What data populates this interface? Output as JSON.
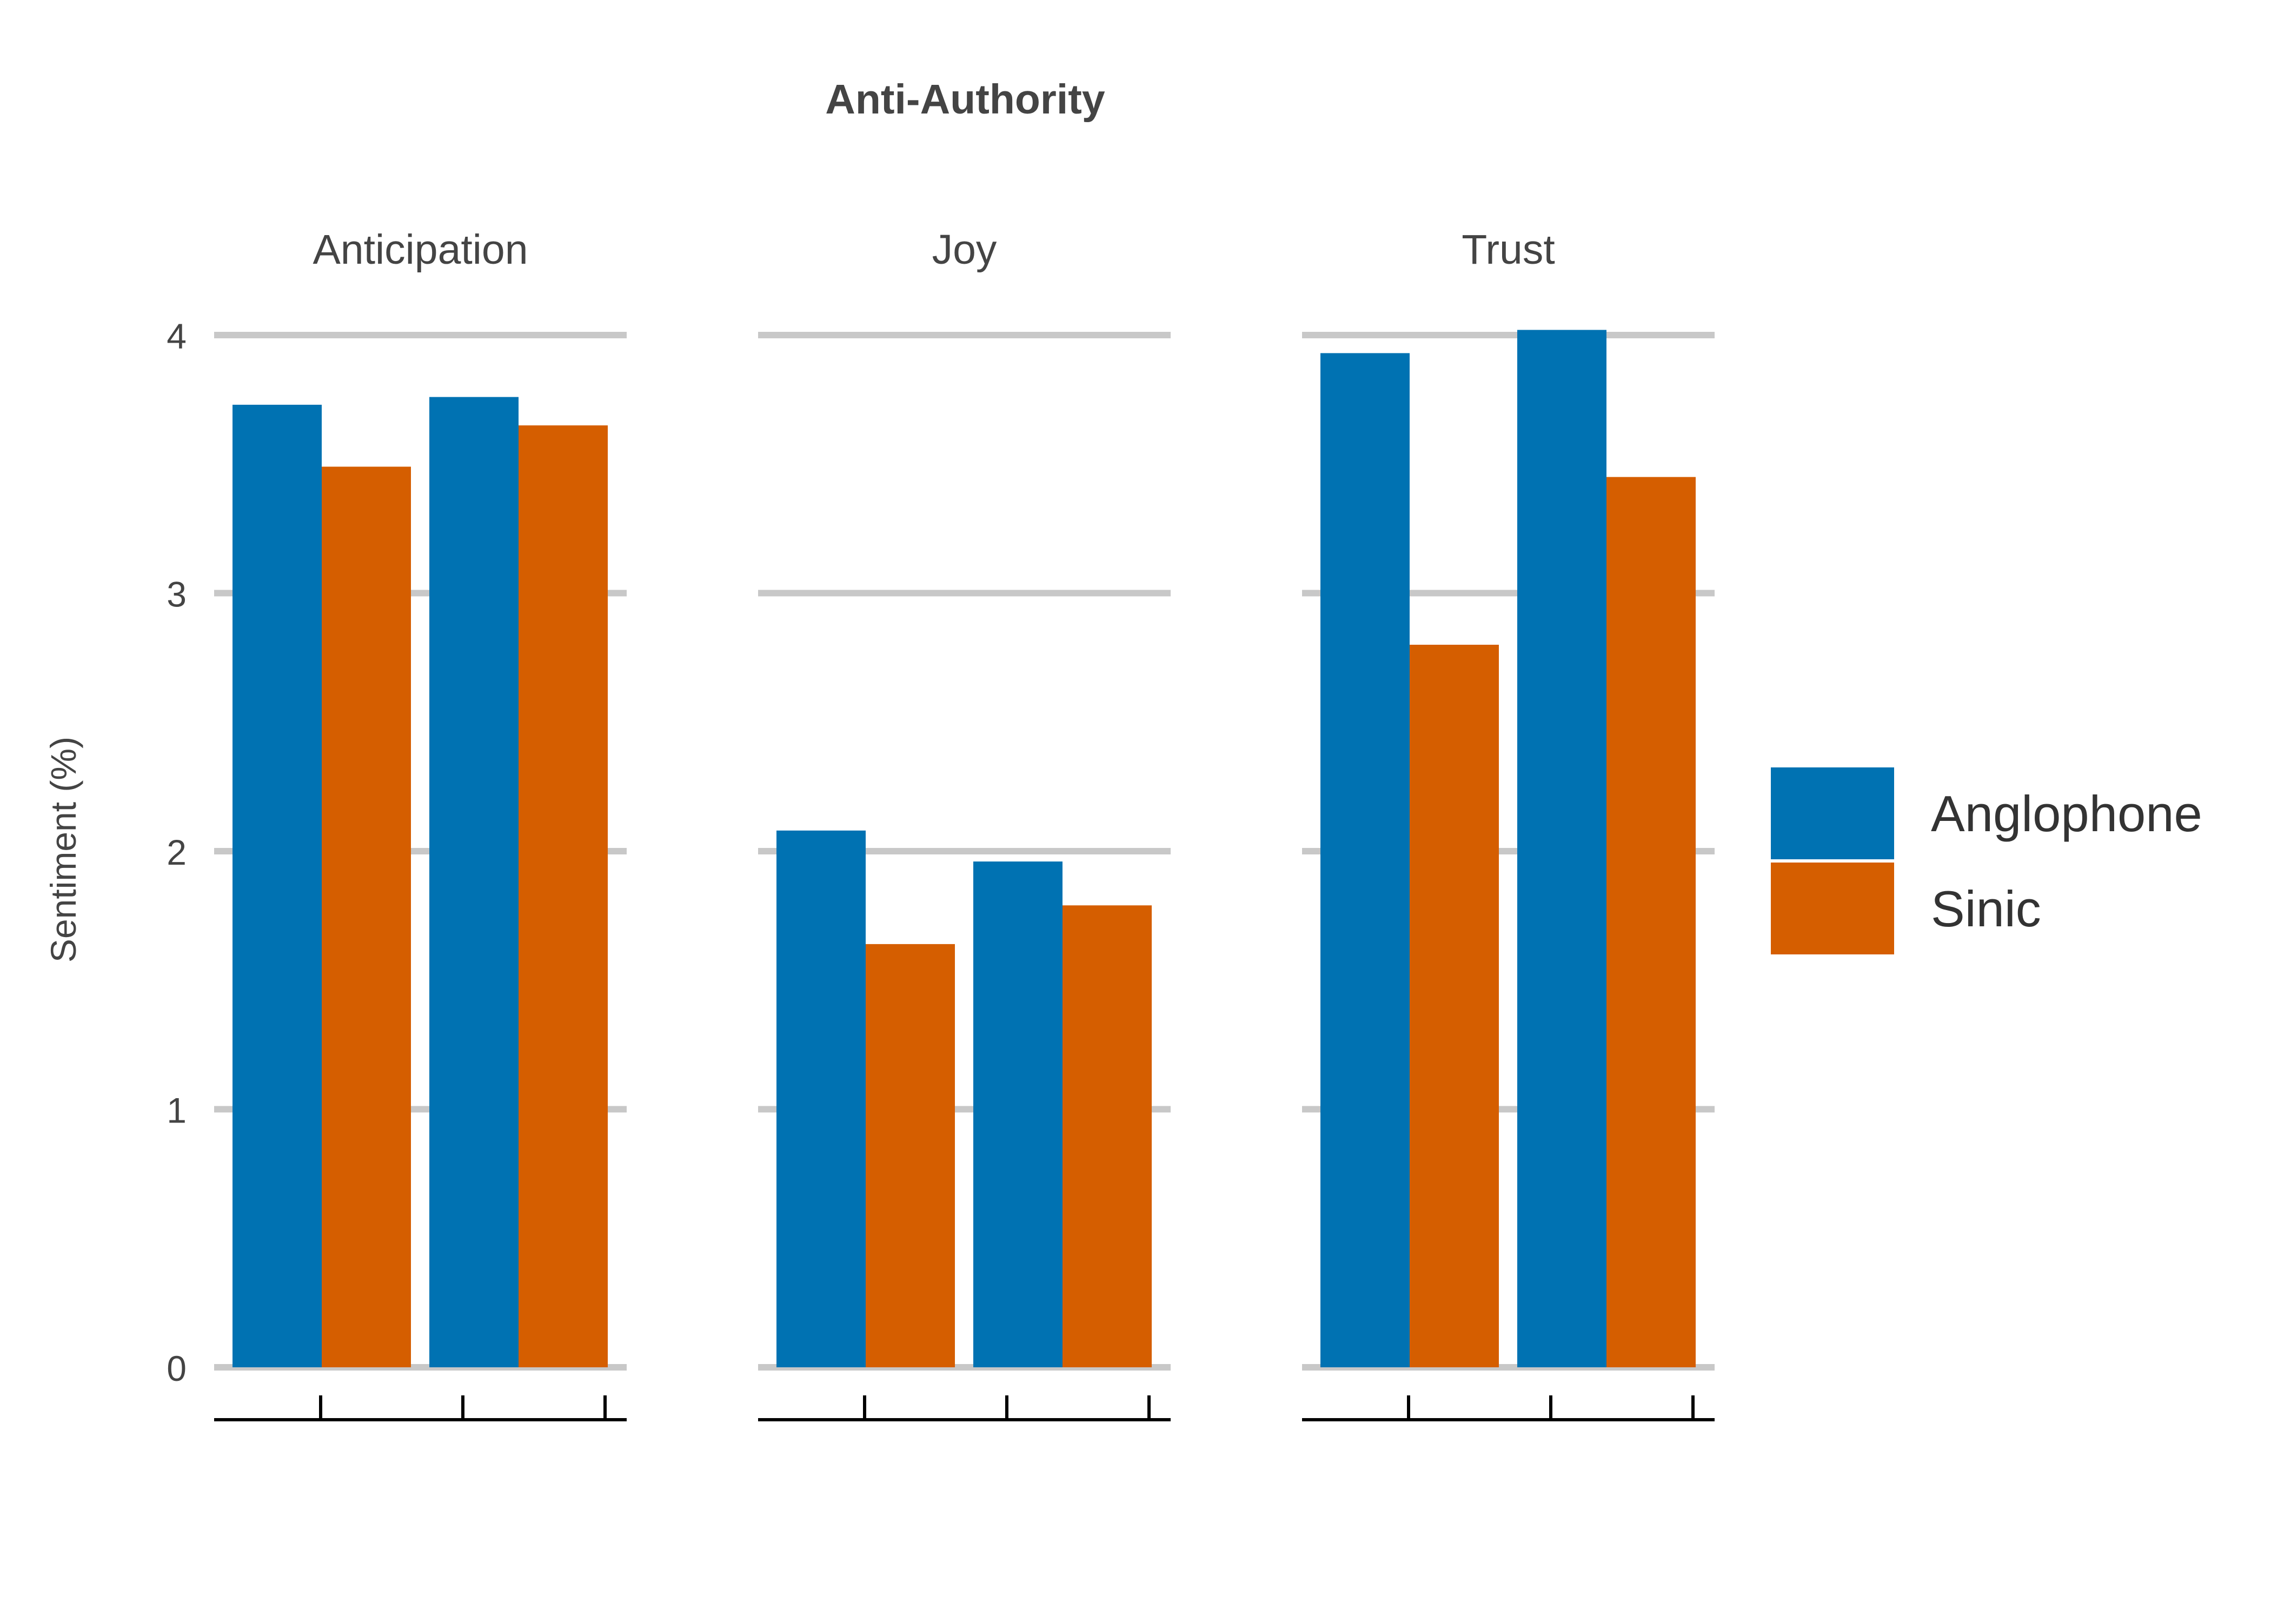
{
  "chart_data": {
    "type": "bar",
    "title": "Anti-Authority",
    "ylabel": "Sentiment (%)",
    "xlabel": "",
    "ylim": [
      0,
      4
    ],
    "yticks": [
      "0",
      "1",
      "2",
      "3",
      "4"
    ],
    "grid": true,
    "legend_position": "right",
    "legend": [
      {
        "name": "Anglophone",
        "color": "#0072b2"
      },
      {
        "name": "Sinic",
        "color": "#d55e00"
      }
    ],
    "panels": [
      {
        "title": "Anticipation",
        "groups": 2,
        "series": [
          {
            "name": "Anglophone",
            "values": [
              3.73,
              3.76
            ]
          },
          {
            "name": "Sinic",
            "values": [
              3.49,
              3.65
            ]
          }
        ]
      },
      {
        "title": "Joy",
        "groups": 2,
        "series": [
          {
            "name": "Anglophone",
            "values": [
              2.08,
              1.96
            ]
          },
          {
            "name": "Sinic",
            "values": [
              1.64,
              1.79
            ]
          }
        ]
      },
      {
        "title": "Trust",
        "groups": 2,
        "series": [
          {
            "name": "Anglophone",
            "values": [
              3.93,
              4.02
            ]
          },
          {
            "name": "Sinic",
            "values": [
              2.8,
              3.45
            ]
          }
        ]
      }
    ]
  },
  "colors": {
    "grid": "#c8c8c8",
    "axis": "#000000",
    "text": "#444444",
    "background": "#ffffff"
  }
}
